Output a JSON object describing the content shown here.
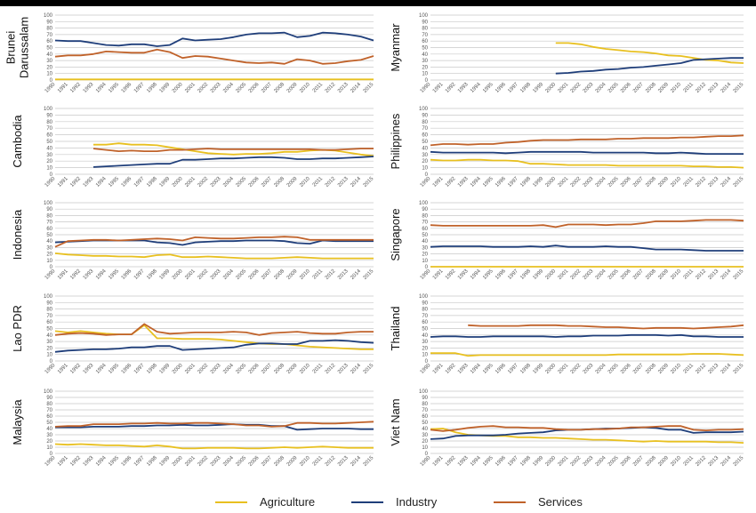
{
  "chart_data": {
    "type": "line",
    "x": [
      1990,
      1991,
      1992,
      1993,
      1994,
      1995,
      1996,
      1997,
      1998,
      1999,
      2000,
      2001,
      2002,
      2003,
      2004,
      2005,
      2006,
      2007,
      2008,
      2009,
      2010,
      2011,
      2012,
      2013,
      2014,
      2015
    ],
    "ylim": [
      0,
      100
    ],
    "y_ticks": [
      0,
      10,
      20,
      30,
      40,
      50,
      60,
      70,
      80,
      90,
      100
    ],
    "grid": true,
    "legend_position": "bottom",
    "series_names": [
      "Agriculture",
      "Industry",
      "Services"
    ],
    "series_colors": {
      "Agriculture": "#E8C020",
      "Industry": "#1F3E7A",
      "Services": "#C0622A"
    },
    "panels": [
      {
        "country": "Brunei Darussalam",
        "title_lines": [
          "Brunei",
          "Darussalam"
        ],
        "Agriculture": [
          1,
          1,
          1,
          1,
          1,
          1,
          1,
          1,
          1,
          1,
          1,
          1,
          1,
          1,
          1,
          1,
          1,
          1,
          1,
          1,
          1,
          1,
          1,
          1,
          1,
          1
        ],
        "Industry": [
          61,
          60,
          60,
          57,
          54,
          53,
          55,
          55,
          52,
          54,
          64,
          61,
          62,
          63,
          66,
          70,
          72,
          72,
          73,
          66,
          68,
          73,
          72,
          70,
          67,
          61
        ],
        "Services": [
          36,
          38,
          38,
          40,
          44,
          43,
          42,
          42,
          47,
          43,
          34,
          37,
          36,
          33,
          30,
          27,
          26,
          27,
          25,
          32,
          30,
          25,
          26,
          29,
          31,
          37
        ]
      },
      {
        "country": "Myanmar",
        "title_lines": [
          "Myanmar"
        ],
        "Agriculture": [
          null,
          null,
          null,
          null,
          null,
          null,
          null,
          null,
          null,
          null,
          57,
          57,
          55,
          51,
          48,
          46,
          44,
          43,
          41,
          38,
          37,
          34,
          31,
          30,
          27,
          26
        ],
        "Industry": [
          null,
          null,
          null,
          null,
          null,
          null,
          null,
          null,
          null,
          null,
          10,
          11,
          13,
          14,
          16,
          17,
          19,
          20,
          22,
          24,
          26,
          31,
          32,
          33,
          34,
          34
        ],
        "Services": [
          null,
          null,
          null,
          null,
          null,
          null,
          null,
          null,
          null,
          null,
          null,
          null,
          null,
          null,
          null,
          null,
          null,
          null,
          null,
          null,
          null,
          null,
          null,
          null,
          null,
          null
        ]
      },
      {
        "country": "Cambodia",
        "title_lines": [
          "Cambodia"
        ],
        "Agriculture": [
          null,
          null,
          null,
          45,
          45,
          47,
          45,
          45,
          44,
          41,
          38,
          35,
          32,
          31,
          30,
          31,
          31,
          32,
          34,
          34,
          36,
          37,
          36,
          33,
          30,
          28
        ],
        "Industry": [
          null,
          null,
          null,
          11,
          12,
          13,
          14,
          15,
          16,
          16,
          22,
          22,
          23,
          24,
          24,
          25,
          26,
          26,
          25,
          23,
          23,
          24,
          24,
          25,
          26,
          27
        ],
        "Services": [
          null,
          null,
          null,
          39,
          37,
          35,
          36,
          35,
          35,
          37,
          37,
          38,
          39,
          38,
          38,
          38,
          38,
          38,
          38,
          38,
          38,
          37,
          37,
          38,
          39,
          39
        ]
      },
      {
        "country": "Philippines",
        "title_lines": [
          "Philippines"
        ],
        "Agriculture": [
          22,
          21,
          21,
          22,
          22,
          21,
          21,
          20,
          16,
          16,
          15,
          14,
          14,
          14,
          14,
          13,
          13,
          13,
          13,
          13,
          13,
          12,
          12,
          11,
          11,
          10
        ],
        "Industry": [
          34,
          33,
          33,
          33,
          33,
          33,
          32,
          33,
          34,
          34,
          34,
          34,
          34,
          33,
          33,
          33,
          33,
          33,
          32,
          32,
          33,
          32,
          31,
          31,
          31,
          31
        ],
        "Services": [
          44,
          46,
          46,
          45,
          46,
          46,
          48,
          49,
          51,
          52,
          52,
          52,
          53,
          53,
          53,
          54,
          54,
          55,
          55,
          55,
          56,
          56,
          57,
          58,
          58,
          59
        ]
      },
      {
        "country": "Indonesia",
        "title_lines": [
          "Indonesia"
        ],
        "Agriculture": [
          21,
          19,
          18,
          17,
          17,
          16,
          16,
          15,
          18,
          19,
          15,
          15,
          16,
          15,
          14,
          13,
          13,
          13,
          14,
          15,
          14,
          13,
          13,
          13,
          13,
          13
        ],
        "Industry": [
          38,
          39,
          40,
          41,
          41,
          41,
          41,
          41,
          38,
          37,
          34,
          38,
          39,
          40,
          40,
          41,
          41,
          41,
          40,
          37,
          36,
          41,
          40,
          40,
          40,
          40
        ],
        "Services": [
          31,
          40,
          41,
          42,
          42,
          41,
          42,
          43,
          44,
          43,
          41,
          46,
          45,
          44,
          44,
          45,
          46,
          46,
          47,
          46,
          42,
          42,
          42,
          42,
          42,
          42
        ]
      },
      {
        "country": "Singapore",
        "title_lines": [
          "Singapore"
        ],
        "Agriculture": [
          0,
          0,
          0,
          0,
          0,
          0,
          0,
          0,
          0,
          0,
          0,
          0,
          0,
          0,
          0,
          0,
          0,
          0,
          0,
          0,
          0,
          0,
          0,
          0,
          0,
          0
        ],
        "Industry": [
          31,
          32,
          32,
          32,
          32,
          31,
          31,
          31,
          32,
          31,
          33,
          31,
          31,
          31,
          32,
          31,
          31,
          29,
          27,
          27,
          27,
          26,
          25,
          25,
          25,
          25
        ],
        "Services": [
          65,
          64,
          64,
          64,
          64,
          64,
          64,
          64,
          64,
          65,
          62,
          66,
          66,
          66,
          65,
          66,
          66,
          68,
          71,
          71,
          71,
          72,
          73,
          73,
          73,
          72
        ]
      },
      {
        "country": "Lao PDR",
        "title_lines": [
          "Lao PDR"
        ],
        "Agriculture": [
          46,
          44,
          46,
          44,
          42,
          41,
          41,
          55,
          35,
          35,
          34,
          34,
          34,
          33,
          31,
          29,
          27,
          26,
          26,
          24,
          22,
          21,
          20,
          19,
          18,
          18
        ],
        "Industry": [
          14,
          16,
          17,
          18,
          18,
          19,
          21,
          21,
          23,
          23,
          17,
          18,
          19,
          20,
          21,
          25,
          27,
          27,
          26,
          26,
          31,
          31,
          32,
          31,
          29,
          28
        ],
        "Services": [
          40,
          42,
          43,
          42,
          40,
          41,
          41,
          57,
          45,
          42,
          43,
          44,
          44,
          44,
          45,
          44,
          40,
          43,
          44,
          45,
          43,
          42,
          42,
          44,
          45,
          45
        ]
      },
      {
        "country": "Thailand",
        "title_lines": [
          "Thailand"
        ],
        "Agriculture": [
          12,
          12,
          12,
          8,
          9,
          9,
          9,
          9,
          9,
          9,
          9,
          9,
          9,
          9,
          9,
          10,
          10,
          10,
          10,
          10,
          10,
          11,
          11,
          11,
          10,
          9
        ],
        "Industry": [
          37,
          38,
          38,
          37,
          37,
          38,
          38,
          38,
          38,
          38,
          37,
          38,
          38,
          39,
          39,
          39,
          40,
          40,
          40,
          39,
          40,
          38,
          38,
          37,
          37,
          37
        ],
        "Services": [
          null,
          null,
          null,
          55,
          54,
          54,
          54,
          54,
          55,
          55,
          55,
          54,
          54,
          53,
          52,
          52,
          51,
          50,
          51,
          51,
          51,
          50,
          51,
          52,
          53,
          55
        ]
      },
      {
        "country": "Malaysia",
        "title_lines": [
          "Malaysia"
        ],
        "Agriculture": [
          15,
          14,
          15,
          14,
          13,
          13,
          12,
          11,
          13,
          11,
          8,
          8,
          9,
          9,
          9,
          8,
          8,
          9,
          10,
          9,
          10,
          11,
          10,
          9,
          9,
          9
        ],
        "Industry": [
          42,
          42,
          42,
          43,
          43,
          43,
          44,
          44,
          45,
          45,
          46,
          45,
          45,
          46,
          47,
          46,
          46,
          44,
          44,
          38,
          39,
          40,
          40,
          40,
          39,
          39
        ],
        "Services": [
          43,
          44,
          44,
          47,
          47,
          47,
          48,
          48,
          49,
          48,
          48,
          49,
          49,
          48,
          47,
          45,
          45,
          43,
          44,
          49,
          49,
          48,
          48,
          49,
          50,
          51
        ]
      },
      {
        "country": "Viet Nam",
        "title_lines": [
          "Viet Nam"
        ],
        "Agriculture": [
          39,
          40,
          34,
          30,
          29,
          28,
          28,
          26,
          26,
          25,
          25,
          24,
          23,
          22,
          22,
          21,
          20,
          19,
          20,
          19,
          19,
          19,
          19,
          18,
          18,
          17
        ],
        "Industry": [
          23,
          24,
          28,
          29,
          29,
          29,
          30,
          32,
          33,
          34,
          37,
          38,
          38,
          39,
          40,
          40,
          41,
          42,
          41,
          38,
          38,
          33,
          34,
          34,
          34,
          35
        ],
        "Services": [
          38,
          36,
          38,
          41,
          43,
          44,
          42,
          42,
          41,
          41,
          39,
          38,
          38,
          39,
          39,
          40,
          42,
          42,
          43,
          44,
          44,
          38,
          37,
          38,
          38,
          39
        ]
      }
    ]
  }
}
